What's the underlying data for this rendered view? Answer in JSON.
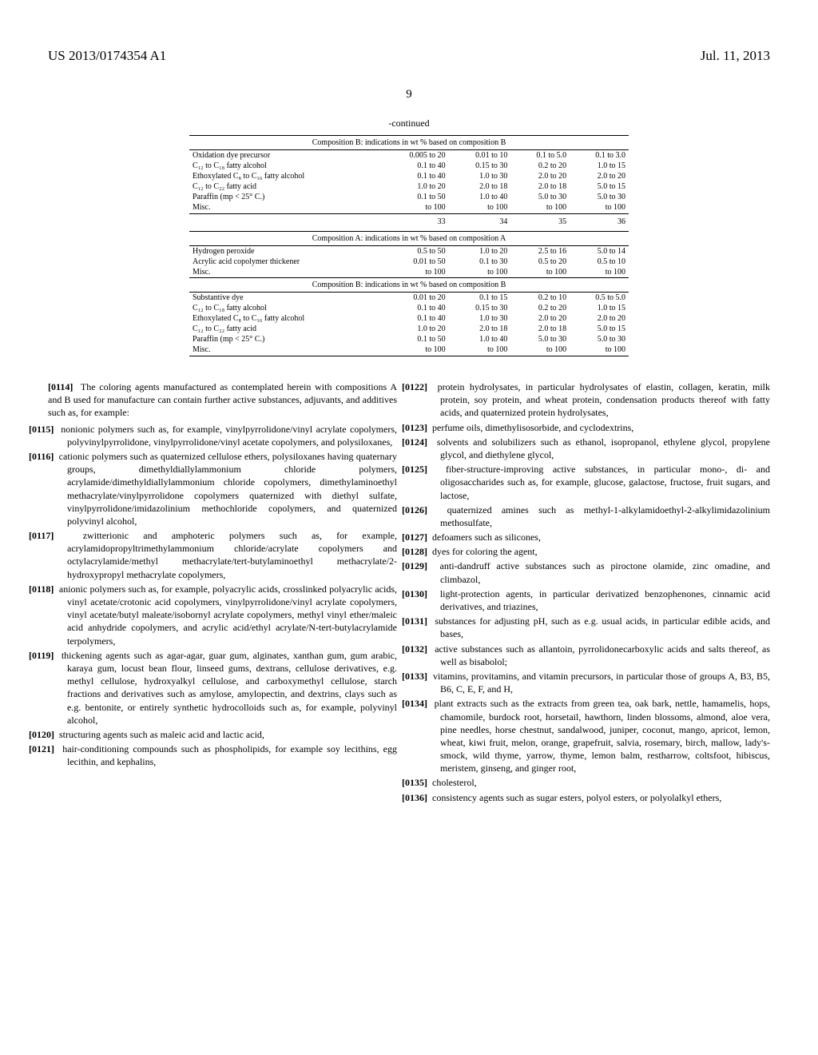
{
  "header": {
    "patent_number": "US 2013/0174354 A1",
    "date": "Jul. 11, 2013"
  },
  "page_number": "9",
  "table": {
    "continued_label": "-continued",
    "section_b_header": "Composition B: indications in wt % based on composition B",
    "section_a_header": "Composition A: indications in wt % based on composition A",
    "part_b_1": {
      "rows": [
        {
          "label": "Oxidation dye precursor",
          "c1": "0.005 to 20",
          "c2": "0.01 to 10",
          "c3": "0.1 to 5.0",
          "c4": "0.1 to 3.0"
        },
        {
          "label": "C₁₂ to C₁₈ fatty alcohol",
          "c1": "0.1 to 40",
          "c2": "0.15 to 30",
          "c3": "0.2 to 20",
          "c4": "1.0 to 15"
        },
        {
          "label": "Ethoxylated C₈ to C₁₆ fatty alcohol",
          "c1": "0.1 to 40",
          "c2": "1.0 to 30",
          "c3": "2.0 to 20",
          "c4": "2.0 to 20"
        },
        {
          "label": "C₁₂ to C₂₂ fatty acid",
          "c1": "1.0 to 20",
          "c2": "2.0 to 18",
          "c3": "2.0 to 18",
          "c4": "5.0 to 15"
        },
        {
          "label": "Paraffin (mp < 25° C.)",
          "c1": "0.1 to 50",
          "c2": "1.0 to 40",
          "c3": "5.0 to 30",
          "c4": "5.0 to 30"
        },
        {
          "label": "Misc.",
          "c1": "to 100",
          "c2": "to 100",
          "c3": "to 100",
          "c4": "to 100"
        }
      ]
    },
    "col_numbers": {
      "c1": "33",
      "c2": "34",
      "c3": "35",
      "c4": "36"
    },
    "part_a": {
      "rows": [
        {
          "label": "Hydrogen peroxide",
          "c1": "0.5 to 50",
          "c2": "1.0 to 20",
          "c3": "2.5 to 16",
          "c4": "5.0 to 14"
        },
        {
          "label": "Acrylic acid copolymer thickener",
          "c1": "0.01 to 50",
          "c2": "0.1 to 30",
          "c3": "0.5 to 20",
          "c4": "0.5 to 10"
        },
        {
          "label": "Misc.",
          "c1": "to 100",
          "c2": "to 100",
          "c3": "to 100",
          "c4": "to 100"
        }
      ]
    },
    "part_b_2": {
      "rows": [
        {
          "label": "Substantive dye",
          "c1": "0.01 to 20",
          "c2": "0.1 to 15",
          "c3": "0.2 to 10",
          "c4": "0.5 to 5.0"
        },
        {
          "label": "C₁₂ to C₁₈ fatty alcohol",
          "c1": "0.1 to 40",
          "c2": "0.15 to 30",
          "c3": "0.2 to 20",
          "c4": "1.0 to 15"
        },
        {
          "label": "Ethoxylated C₈ to C₁₆ fatty alcohol",
          "c1": "0.1 to 40",
          "c2": "1.0 to 30",
          "c3": "2.0 to 20",
          "c4": "2.0 to 20"
        },
        {
          "label": "C₁₂ to C₂₂ fatty acid",
          "c1": "1.0 to 20",
          "c2": "2.0 to 18",
          "c3": "2.0 to 18",
          "c4": "5.0 to 15"
        },
        {
          "label": "Paraffin (mp < 25° C.)",
          "c1": "0.1 to 50",
          "c2": "1.0 to 40",
          "c3": "5.0 to 30",
          "c4": "5.0 to 30"
        },
        {
          "label": "Misc.",
          "c1": "to 100",
          "c2": "to 100",
          "c3": "to 100",
          "c4": "to 100"
        }
      ]
    }
  },
  "paragraphs": {
    "p0114": {
      "num": "[0114]",
      "text": "The coloring agents manufactured as contemplated herein with compositions A and B used for manufacture can contain further active substances, adjuvants, and additives such as, for example:"
    },
    "p0115": {
      "num": "[0115]",
      "text": "nonionic polymers such as, for example, vinylpyrrolidone/vinyl acrylate copolymers, polyvinylpyrrolidone, vinylpyrrolidone/vinyl acetate copolymers, and polysiloxanes,"
    },
    "p0116": {
      "num": "[0116]",
      "text": "cationic polymers such as quaternized cellulose ethers, polysiloxanes having quaternary groups, dimethyldiallylammonium chloride polymers, acrylamide/dimethyldiallylammonium chloride copolymers, dimethylaminoethyl methacrylate/vinylpyrrolidone copolymers quaternized with diethyl sulfate, vinylpyrrolidone/imidazolinium methochloride copolymers, and quaternized polyvinyl alcohol,"
    },
    "p0117": {
      "num": "[0117]",
      "text": "zwitterionic and amphoteric polymers such as, for example, acrylamidopropyltrimethylammonium chloride/acrylate copolymers and octylacrylamide/methyl methacrylate/tert-butylaminoethyl methacrylate/2-hydroxypropyl methacrylate copolymers,"
    },
    "p0118": {
      "num": "[0118]",
      "text": "anionic polymers such as, for example, polyacrylic acids, crosslinked polyacrylic acids, vinyl acetate/crotonic acid copolymers, vinylpyrrolidone/vinyl acrylate copolymers, vinyl acetate/butyl maleate/isobornyl acrylate copolymers, methyl vinyl ether/maleic acid anhydride copolymers, and acrylic acid/ethyl acrylate/N-tert-butylacrylamide terpolymers,"
    },
    "p0119": {
      "num": "[0119]",
      "text": "thickening agents such as agar-agar, guar gum, alginates, xanthan gum, gum arabic, karaya gum, locust bean flour, linseed gums, dextrans, cellulose derivatives, e.g. methyl cellulose, hydroxyalkyl cellulose, and carboxymethyl cellulose, starch fractions and derivatives such as amylose, amylopectin, and dextrins, clays such as e.g. bentonite, or entirely synthetic hydrocolloids such as, for example, polyvinyl alcohol,"
    },
    "p0120": {
      "num": "[0120]",
      "text": "structuring agents such as maleic acid and lactic acid,"
    },
    "p0121": {
      "num": "[0121]",
      "text": "hair-conditioning compounds such as phospholipids, for example soy lecithins, egg lecithin, and kephalins,"
    },
    "p0122": {
      "num": "[0122]",
      "text": "protein hydrolysates, in particular hydrolysates of elastin, collagen, keratin, milk protein, soy protein, and wheat protein, condensation products thereof with fatty acids, and quaternized protein hydrolysates,"
    },
    "p0123": {
      "num": "[0123]",
      "text": "perfume oils, dimethylisosorbide, and cyclodextrins,"
    },
    "p0124": {
      "num": "[0124]",
      "text": "solvents and solubilizers such as ethanol, isopropanol, ethylene glycol, propylene glycol, and diethylene glycol,"
    },
    "p0125": {
      "num": "[0125]",
      "text": "fiber-structure-improving active substances, in particular mono-, di- and oligosaccharides such as, for example, glucose, galactose, fructose, fruit sugars, and lactose,"
    },
    "p0126": {
      "num": "[0126]",
      "text": "quaternized amines such as methyl-1-alkylamidoethyl-2-alkylimidazolinium methosulfate,"
    },
    "p0127": {
      "num": "[0127]",
      "text": "defoamers such as silicones,"
    },
    "p0128": {
      "num": "[0128]",
      "text": "dyes for coloring the agent,"
    },
    "p0129": {
      "num": "[0129]",
      "text": "anti-dandruff active substances such as piroctone olamide, zinc omadine, and climbazol,"
    },
    "p0130": {
      "num": "[0130]",
      "text": "light-protection agents, in particular derivatized benzophenones, cinnamic acid derivatives, and triazines,"
    },
    "p0131": {
      "num": "[0131]",
      "text": "substances for adjusting pH, such as e.g. usual acids, in particular edible acids, and bases,"
    },
    "p0132": {
      "num": "[0132]",
      "text": "active substances such as allantoin, pyrrolidonecarboxylic acids and salts thereof, as well as bisabolol;"
    },
    "p0133": {
      "num": "[0133]",
      "text": "vitamins, provitamins, and vitamin precursors, in particular those of groups A, B3, B5, B6, C, E, F, and H,"
    },
    "p0134": {
      "num": "[0134]",
      "text": "plant extracts such as the extracts from green tea, oak bark, nettle, hamamelis, hops, chamomile, burdock root, horsetail, hawthorn, linden blossoms, almond, aloe vera, pine needles, horse chestnut, sandalwood, juniper, coconut, mango, apricot, lemon, wheat, kiwi fruit, melon, orange, grapefruit, salvia, rosemary, birch, mallow, lady's-smock, wild thyme, yarrow, thyme, lemon balm, restharrow, coltsfoot, hibiscus, meristem, ginseng, and ginger root,"
    },
    "p0135": {
      "num": "[0135]",
      "text": "cholesterol,"
    },
    "p0136": {
      "num": "[0136]",
      "text": "consistency agents such as sugar esters, polyol esters, or polyolalkyl ethers,"
    }
  }
}
